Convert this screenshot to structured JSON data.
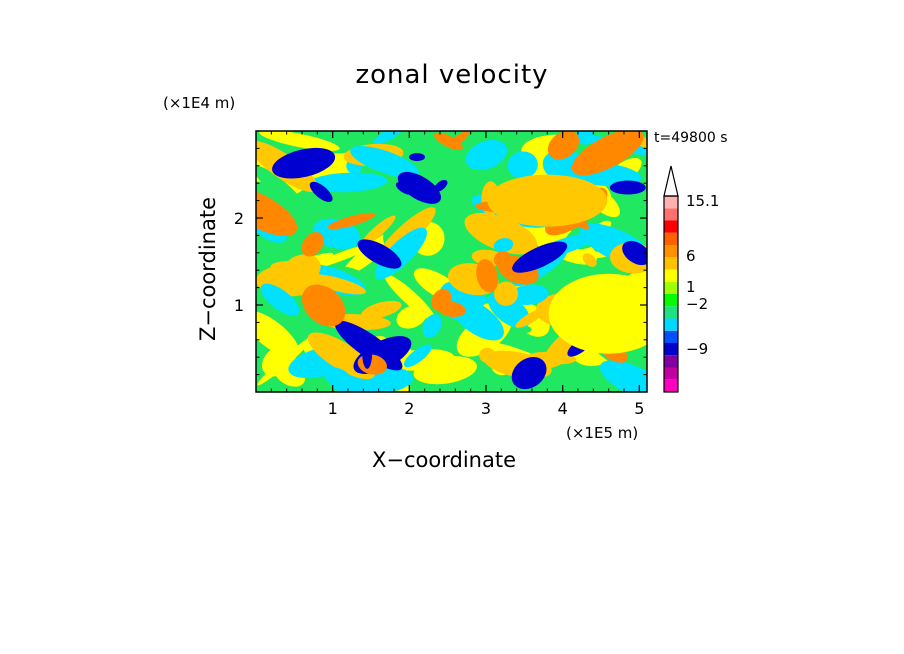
{
  "chart_data": {
    "type": "heatmap",
    "title": "zonal velocity",
    "xlabel": "X−coordinate",
    "ylabel": "Z−coordinate",
    "x_unit": "(×1E5 m)",
    "y_unit": "(×1E4 m)",
    "annotation": "t=49800 s",
    "xlim": [
      0,
      5.1
    ],
    "ylim": [
      0,
      3.0
    ],
    "xticks": [
      "1",
      "2",
      "3",
      "4",
      "5"
    ],
    "yticks": [
      "1",
      "2"
    ],
    "colorbar": {
      "labels": [
        "15.1",
        "6",
        "1",
        "−2",
        "−9"
      ],
      "levels": [
        {
          "color": "#ff00c0"
        },
        {
          "color": "#c000a0"
        },
        {
          "color": "#8000a0"
        },
        {
          "color": "#0000c8"
        },
        {
          "color": "#0050ff"
        },
        {
          "color": "#00d8ff"
        },
        {
          "color": "#20e080"
        },
        {
          "color": "#00ff00"
        },
        {
          "color": "#a0ff00"
        },
        {
          "color": "#ffff00"
        },
        {
          "color": "#ffc000"
        },
        {
          "color": "#ff9000"
        },
        {
          "color": "#ff6000"
        },
        {
          "color": "#ff0000"
        },
        {
          "color": "#ff7070"
        },
        {
          "color": "#ffb0b0"
        }
      ]
    },
    "field_colors": {
      "strong_negative": "#0000d0",
      "negative": "#00e0ff",
      "near_zero": "#20e860",
      "weak_positive": "#ffff00",
      "positive": "#ffc800",
      "strong_positive": "#ff8800",
      "max_positive": "#ff4000"
    }
  }
}
